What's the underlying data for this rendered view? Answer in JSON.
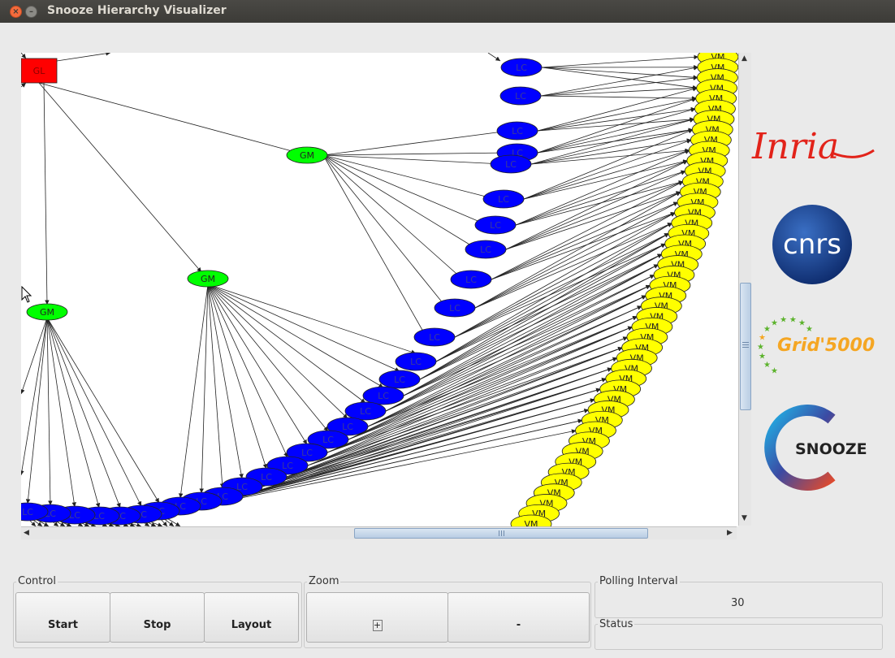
{
  "window": {
    "title": "Snooze Hierarchy Visualizer"
  },
  "graph": {
    "gl_label": "GL",
    "gm_label": "GM",
    "lc_label": "LC",
    "vm_label": "VM"
  },
  "logos": {
    "inria": "Inria",
    "cnrs": "cnrs",
    "grid": "Grid'5000",
    "snooze": "SNOOZE"
  },
  "control": {
    "label": "Control",
    "start": "Start",
    "stop": "Stop",
    "layout": "Layout"
  },
  "zoom": {
    "label": "Zoom",
    "plus": "+",
    "minus": "-"
  },
  "polling": {
    "label": "Polling Interval",
    "value": "30"
  },
  "status": {
    "label": "Status"
  },
  "colors": {
    "gl": "#ff0000",
    "gm": "#00ff00",
    "lc": "#0000ff",
    "vm": "#ffff00"
  }
}
